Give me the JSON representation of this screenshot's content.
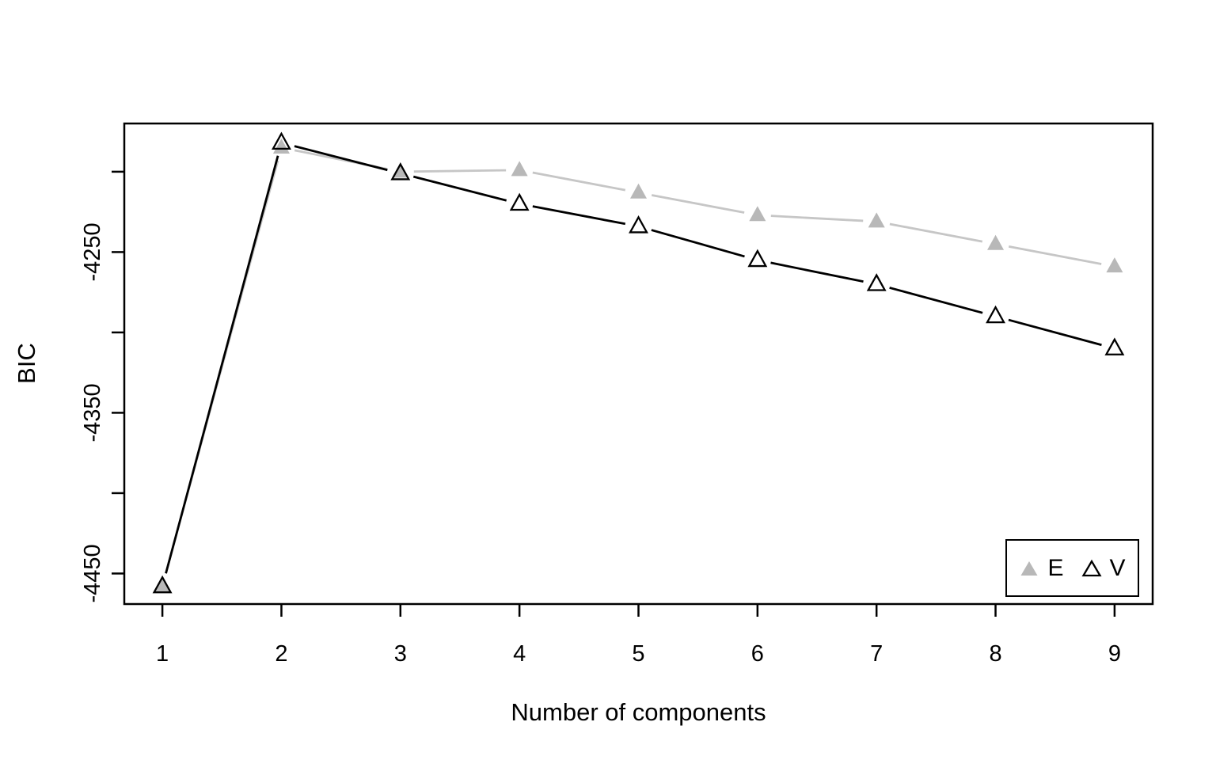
{
  "figure": {
    "background": "#ffffff",
    "plot_border_color": "#000000"
  },
  "chart_data": {
    "type": "line",
    "title": "",
    "xlabel": "Number of components",
    "ylabel": "BIC",
    "x": [
      1,
      2,
      3,
      4,
      5,
      6,
      7,
      8,
      9
    ],
    "series": [
      {
        "name": "E",
        "marker": "filled-triangle",
        "line_color": "#c6c6c6",
        "marker_color": "#b8b8b8",
        "values": [
          -4458,
          -4185,
          -4200,
          -4199,
          -4213,
          -4227,
          -4231,
          -4245,
          -4259
        ]
      },
      {
        "name": "V",
        "marker": "open-triangle",
        "line_color": "#000000",
        "marker_color": "#000000",
        "values": [
          -4458,
          -4182,
          -4201,
          -4220,
          -4234,
          -4255,
          -4270,
          -4290,
          -4310
        ]
      }
    ],
    "xlim": [
      0.68,
      9.32
    ],
    "ylim": [
      -4469,
      -4170
    ],
    "x_ticks": [
      {
        "v": 1,
        "label": "1"
      },
      {
        "v": 2,
        "label": "2"
      },
      {
        "v": 3,
        "label": "3"
      },
      {
        "v": 4,
        "label": "4"
      },
      {
        "v": 5,
        "label": "5"
      },
      {
        "v": 6,
        "label": "6"
      },
      {
        "v": 7,
        "label": "7"
      },
      {
        "v": 8,
        "label": "8"
      },
      {
        "v": 9,
        "label": "9"
      }
    ],
    "y_ticks": [
      {
        "v": -4450,
        "label": "-4450"
      },
      {
        "v": -4400,
        "label": ""
      },
      {
        "v": -4350,
        "label": "-4350"
      },
      {
        "v": -4300,
        "label": ""
      },
      {
        "v": -4250,
        "label": "-4250"
      },
      {
        "v": -4200,
        "label": ""
      }
    ],
    "grid": false,
    "legend_position": "bottom-right"
  },
  "legend": {
    "items": [
      {
        "label": "E",
        "icon": "filled-triangle-icon",
        "color": "#b8b8b8"
      },
      {
        "label": "V",
        "icon": "open-triangle-icon",
        "color": "#000000"
      }
    ]
  }
}
